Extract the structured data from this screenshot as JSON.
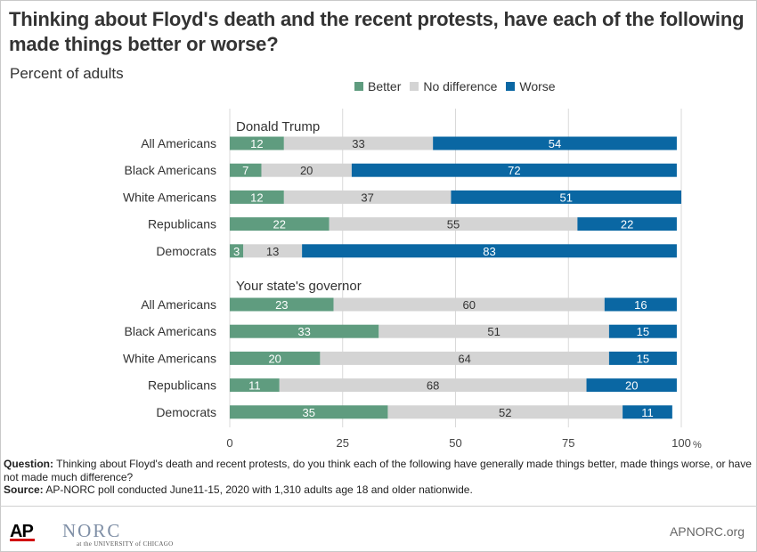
{
  "title": "Thinking about Floyd's death and the recent protests, have each of the following made things better or worse?",
  "subtitle": "Percent of adults",
  "legend": [
    {
      "label": "Better",
      "color": "#5f9c7f"
    },
    {
      "label": "No difference",
      "color": "#d4d4d4"
    },
    {
      "label": "Worse",
      "color": "#0a67a3"
    }
  ],
  "chart_data": {
    "type": "bar",
    "orientation": "horizontal",
    "stacked": true,
    "xlim": [
      0,
      100
    ],
    "xticks": [
      0,
      25,
      50,
      75,
      100
    ],
    "xunit": "%",
    "grid": true,
    "legend_position": "top",
    "groups": [
      {
        "label": "Donald Trump",
        "categories": [
          "All Americans",
          "Black Americans",
          "White Americans",
          "Republicans",
          "Democrats"
        ],
        "series": [
          {
            "name": "Better",
            "values": [
              12,
              7,
              12,
              22,
              3
            ]
          },
          {
            "name": "No difference",
            "values": [
              33,
              20,
              37,
              55,
              13
            ]
          },
          {
            "name": "Worse",
            "values": [
              54,
              72,
              51,
              22,
              83
            ]
          }
        ]
      },
      {
        "label": "Your state's governor",
        "categories": [
          "All Americans",
          "Black Americans",
          "White Americans",
          "Republicans",
          "Democrats"
        ],
        "series": [
          {
            "name": "Better",
            "values": [
              23,
              33,
              20,
              11,
              35
            ]
          },
          {
            "name": "No difference",
            "values": [
              60,
              51,
              64,
              68,
              52
            ]
          },
          {
            "name": "Worse",
            "values": [
              16,
              15,
              15,
              20,
              11
            ]
          }
        ]
      }
    ]
  },
  "footnote": {
    "question_label": "Question:",
    "question_text": "Thinking about Floyd's death and recent protests, do you think each of the following have generally made things better, made things worse, or have not made much difference?",
    "source_label": "Source:",
    "source_text": "AP-NORC poll conducted June11-15, 2020 with 1,310 adults age 18 and older nationwide."
  },
  "logos": {
    "ap": "AP",
    "norc": "NORC",
    "norc_sub": "at the UNIVERSITY of CHICAGO"
  },
  "site": "APNORC.org"
}
